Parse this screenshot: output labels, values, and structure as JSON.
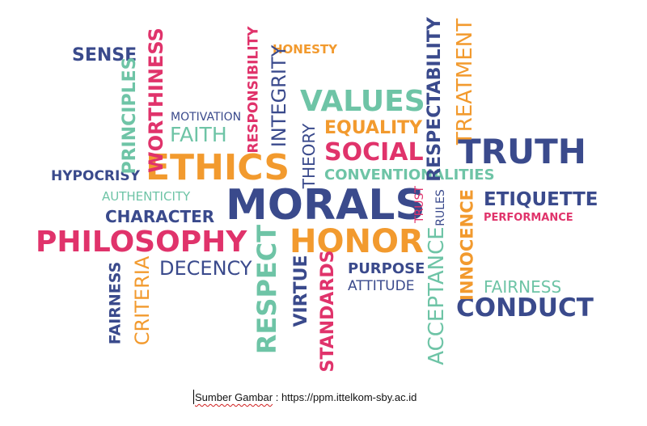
{
  "colors": {
    "navy": "#3a4a8c",
    "orange": "#f29a2e",
    "pink": "#e0336b",
    "teal": "#6ec4a6"
  },
  "words": {
    "sense": "SENSE",
    "principles": "PRINCIPLES",
    "worthiness": "WORTHINESS",
    "motivation": "MOTIVATION",
    "faith": "FAITH",
    "responsibility": "RESPONSIBILITY",
    "integrity": "INTEGRITY",
    "honesty": "HONESTY",
    "values": "VALUES",
    "equality": "EQUALITY",
    "respectability": "RESPECTABILITY",
    "treatment": "TREATMENT",
    "theory": "THEORY",
    "social": "SOCIAL",
    "truth": "TRUTH",
    "hypocrisy": "HYPOCRISY",
    "ethics": "ETHICS",
    "conventionalities": "CONVENTIONALITIES",
    "authenticity": "AUTHENTICITY",
    "morals": "MORALS",
    "trust": "TRUST",
    "rules": "RULES",
    "etiquette": "ETIQUETTE",
    "character": "CHARACTER",
    "performance": "PERFORMANCE",
    "philosophy": "PHILOSOPHY",
    "honor": "HONOR",
    "innocence": "INNOCENCE",
    "respect": "RESPECT",
    "fairness_left": "FAIRNESS",
    "criteria": "CRITERIA",
    "decency": "DECENCY",
    "virtue": "VIRTUE",
    "purpose": "PURPOSE",
    "attitude": "ATTITUDE",
    "standards": "STANDARDS",
    "acceptance": "ACCEPTANCE",
    "fairness_right": "FAIRNESS",
    "conduct": "CONDUCT"
  },
  "caption": {
    "label": "Sumber Gambar",
    "separator": " : ",
    "url": "https://ppm.ittelkom-sby.ac.id"
  }
}
